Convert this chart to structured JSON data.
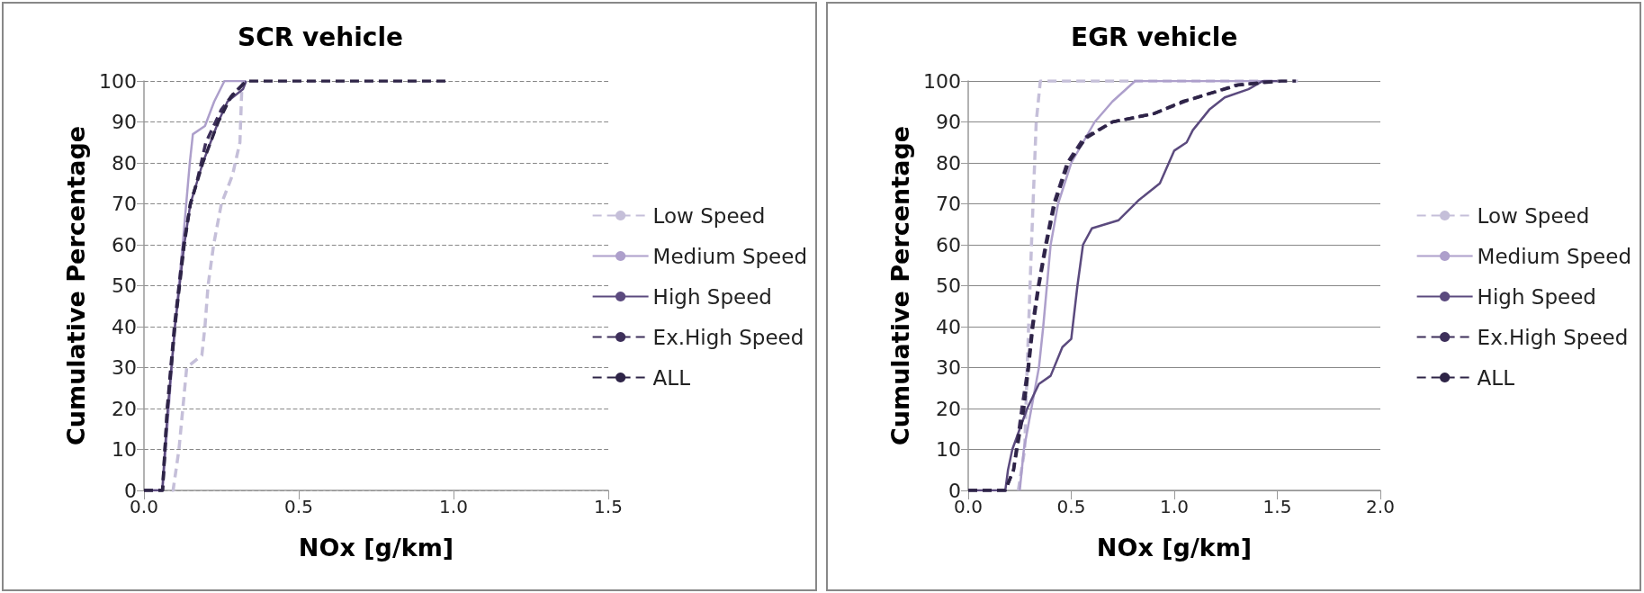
{
  "chart_data": [
    {
      "type": "line",
      "title": "SCR vehicle",
      "xlabel": "NOx [g/km]",
      "ylabel": "Cumulative Percentage",
      "xlim": [
        0,
        1.5
      ],
      "xticks": [
        {
          "value": 0,
          "label": "0.0"
        },
        {
          "value": 0.5,
          "label": "0.5"
        },
        {
          "value": 1,
          "label": "1.0"
        },
        {
          "value": 1.5,
          "label": "1.5"
        }
      ],
      "ylim": [
        0,
        100
      ],
      "yticks": [
        0,
        10,
        20,
        30,
        40,
        50,
        60,
        70,
        80,
        90,
        100
      ],
      "grid": "y",
      "legend": "right",
      "marker": "none",
      "series": [
        {
          "name": "Low Speed",
          "color": "#c5bfd9",
          "line_style": "dashed",
          "x": [
            0.09,
            0.094,
            0.113,
            0.138,
            0.187,
            0.197,
            0.207,
            0.225,
            0.25,
            0.286,
            0.31,
            0.316,
            0.32
          ],
          "values": [
            0,
            0,
            10,
            30,
            33,
            40,
            50,
            60,
            70,
            77,
            85,
            98,
            100
          ]
        },
        {
          "name": "Medium Speed",
          "color": "#ad9fcb",
          "line_style": "solid",
          "x": [
            0,
            0.06,
            0.08,
            0.1,
            0.125,
            0.148,
            0.158,
            0.197,
            0.227,
            0.26,
            0.33
          ],
          "values": [
            0,
            0,
            20,
            40,
            60,
            80,
            87,
            89,
            95,
            100,
            100
          ]
        },
        {
          "name": "High Speed",
          "color": "#5b4a7e",
          "line_style": "solid",
          "x": [
            0,
            0.059,
            0.077,
            0.1,
            0.13,
            0.15,
            0.19,
            0.24,
            0.27,
            0.32,
            0.33
          ],
          "values": [
            0,
            0,
            20,
            40,
            60,
            70,
            80,
            90,
            95,
            98,
            100
          ]
        },
        {
          "name": "Ex.High Speed",
          "color": "#3d2f5a",
          "line_style": "dashed",
          "x": [
            0,
            0.06,
            0.075,
            0.098,
            0.128,
            0.15,
            0.17,
            0.2,
            0.25,
            0.29,
            0.33
          ],
          "values": [
            0,
            0,
            20,
            40,
            60,
            70,
            75,
            85,
            93,
            97,
            100
          ]
        },
        {
          "name": "ALL",
          "color": "#2e2447",
          "line_style": "dashed",
          "x": [
            0,
            0.06,
            0.076,
            0.1,
            0.13,
            0.15,
            0.19,
            0.24,
            0.28,
            0.33,
            0.98
          ],
          "values": [
            0,
            0,
            20,
            40,
            60,
            70,
            80,
            90,
            96,
            100,
            100
          ]
        }
      ]
    },
    {
      "type": "line",
      "title": "EGR vehicle",
      "xlabel": "NOx [g/km]",
      "ylabel": "Cumulative Percentage",
      "xlim": [
        0,
        2
      ],
      "xticks": [
        {
          "value": 0,
          "label": "0.0"
        },
        {
          "value": 0.5,
          "label": "0.5"
        },
        {
          "value": 1,
          "label": "1.0"
        },
        {
          "value": 1.5,
          "label": "1.5"
        },
        {
          "value": 2,
          "label": "2.0"
        }
      ],
      "ylim": [
        0,
        100
      ],
      "yticks": [
        0,
        10,
        20,
        30,
        40,
        50,
        60,
        70,
        80,
        90,
        100
      ],
      "grid": "y",
      "legend": "right",
      "marker": "none",
      "series": [
        {
          "name": "Low Speed",
          "color": "#c5bfd9",
          "line_style": "dashed",
          "x": [
            0.243,
            0.274,
            0.286,
            0.307,
            0.33,
            0.35,
            1.6
          ],
          "values": [
            0,
            10,
            30,
            60,
            90,
            100,
            100
          ]
        },
        {
          "name": "Medium Speed",
          "color": "#ad9fcb",
          "line_style": "solid",
          "x": [
            0.25,
            0.27,
            0.343,
            0.364,
            0.4,
            0.436,
            0.5,
            0.557,
            0.614,
            0.7,
            0.81,
            1.5
          ],
          "values": [
            0,
            10,
            30,
            40,
            60,
            70,
            80,
            85,
            90,
            95,
            100,
            100
          ]
        },
        {
          "name": "High Speed",
          "color": "#5b4a7e",
          "line_style": "solid",
          "x": [
            0,
            0.18,
            0.193,
            0.214,
            0.286,
            0.343,
            0.4,
            0.457,
            0.5,
            0.53,
            0.557,
            0.6,
            0.73,
            0.83,
            0.93,
            1.0,
            1.06,
            1.09,
            1.17,
            1.245,
            1.36,
            1.43,
            1.5
          ],
          "values": [
            0,
            0,
            5,
            10,
            20,
            26,
            28,
            35,
            37,
            50,
            60,
            64,
            66,
            71,
            75,
            83,
            85,
            88,
            93,
            96,
            98,
            100,
            100
          ]
        },
        {
          "name": "Ex.High Speed",
          "color": "#3d2f5a",
          "line_style": "dashed",
          "x": [
            0,
            0.18,
            0.22,
            0.26,
            0.29,
            0.31,
            0.34,
            0.375,
            0.415,
            0.48,
            0.56,
            0.7,
            0.9,
            1.05,
            1.3,
            1.5
          ],
          "values": [
            0,
            0,
            5,
            20,
            30,
            40,
            50,
            60,
            70,
            80,
            86,
            90,
            92,
            95,
            99,
            100
          ]
        },
        {
          "name": "ALL",
          "color": "#2e2447",
          "line_style": "dashed",
          "x": [
            0,
            0.18,
            0.22,
            0.27,
            0.293,
            0.314,
            0.343,
            0.379,
            0.42,
            0.486,
            0.57,
            0.7,
            0.9,
            1.04,
            1.11,
            1.31,
            1.52,
            1.59
          ],
          "values": [
            0,
            0,
            5,
            20,
            30,
            40,
            50,
            60,
            70,
            80,
            86,
            90,
            92,
            95,
            96,
            99,
            100,
            100
          ]
        }
      ]
    }
  ]
}
